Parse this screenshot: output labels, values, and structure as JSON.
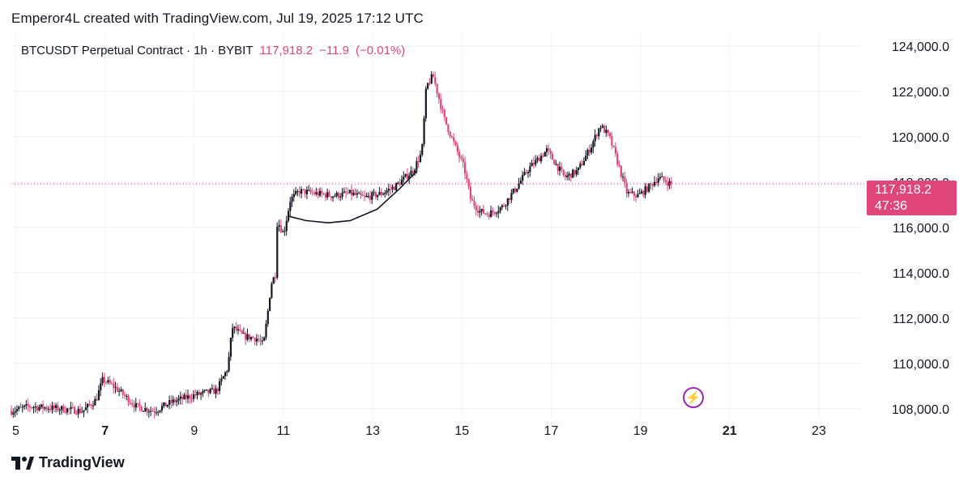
{
  "header": {
    "attribution": "Emperor4L created with TradingView.com, Jul 19, 2025 17:12 UTC"
  },
  "legend": {
    "symbol": "BTCUSDT Perpetual Contract · 1h · BYBIT",
    "last": "117,918.2",
    "change": "−11.9",
    "change_pct": "(−0.01%)"
  },
  "price_tag": {
    "price": "117,918.2",
    "countdown": "47:36"
  },
  "footer": {
    "brand": "TradingView"
  },
  "colors": {
    "up": "#131722",
    "down": "#e0457b",
    "grid": "#f0f3fa",
    "axis_text": "#131722",
    "price_line": "#e0457b"
  },
  "chart_data": {
    "type": "candlestick",
    "title": "BTCUSDT Perpetual Contract · 1h · BYBIT",
    "timeframe": "1h",
    "ylim": [
      107600,
      124600
    ],
    "y_ticks": [
      {
        "value": 108000,
        "label": "108,000.0"
      },
      {
        "value": 110000,
        "label": "110,000.0"
      },
      {
        "value": 112000,
        "label": "112,000.0"
      },
      {
        "value": 114000,
        "label": "114,000.0"
      },
      {
        "value": 116000,
        "label": "116,000.0"
      },
      {
        "value": 118000,
        "label": "118,000.0"
      },
      {
        "value": 120000,
        "label": "120,000.0"
      },
      {
        "value": 122000,
        "label": "122,000.0"
      },
      {
        "value": 124000,
        "label": "124,000.0"
      }
    ],
    "xlim_days": [
      4.9,
      24.0
    ],
    "x_ticks": [
      {
        "day": 5,
        "label": "5",
        "bold": false
      },
      {
        "day": 7,
        "label": "7",
        "bold": true
      },
      {
        "day": 9,
        "label": "9",
        "bold": false
      },
      {
        "day": 11,
        "label": "11",
        "bold": false
      },
      {
        "day": 13,
        "label": "13",
        "bold": false
      },
      {
        "day": 15,
        "label": "15",
        "bold": false
      },
      {
        "day": 17,
        "label": "17",
        "bold": false
      },
      {
        "day": 19,
        "label": "19",
        "bold": false
      },
      {
        "day": 21,
        "label": "21",
        "bold": true
      },
      {
        "day": 23,
        "label": "23",
        "bold": false
      }
    ],
    "last_price": 117918.2,
    "path_points": [
      [
        4.9,
        107900
      ],
      [
        5.3,
        108100
      ],
      [
        6.0,
        108000
      ],
      [
        6.5,
        107900
      ],
      [
        6.8,
        108400
      ],
      [
        6.95,
        109300
      ],
      [
        7.25,
        108900
      ],
      [
        7.7,
        108100
      ],
      [
        8.1,
        107900
      ],
      [
        8.5,
        108300
      ],
      [
        9.0,
        108600
      ],
      [
        9.5,
        108800
      ],
      [
        9.75,
        109800
      ],
      [
        9.85,
        111600
      ],
      [
        10.1,
        111200
      ],
      [
        10.4,
        111100
      ],
      [
        10.55,
        110800
      ],
      [
        10.65,
        112300
      ],
      [
        10.72,
        113500
      ],
      [
        10.83,
        114000
      ],
      [
        10.86,
        116300
      ],
      [
        11.0,
        115700
      ],
      [
        11.15,
        117200
      ],
      [
        11.35,
        117600
      ],
      [
        11.7,
        117500
      ],
      [
        12.1,
        117400
      ],
      [
        12.5,
        117500
      ],
      [
        12.8,
        117300
      ],
      [
        13.2,
        117500
      ],
      [
        13.5,
        117800
      ],
      [
        13.9,
        118500
      ],
      [
        14.1,
        119300
      ],
      [
        14.2,
        122200
      ],
      [
        14.35,
        122700
      ],
      [
        14.6,
        120800
      ],
      [
        14.8,
        119800
      ],
      [
        15.05,
        118600
      ],
      [
        15.2,
        117200
      ],
      [
        15.4,
        116700
      ],
      [
        15.6,
        116600
      ],
      [
        15.9,
        116900
      ],
      [
        16.2,
        117700
      ],
      [
        16.5,
        118600
      ],
      [
        16.9,
        119400
      ],
      [
        17.3,
        118200
      ],
      [
        17.6,
        118500
      ],
      [
        17.9,
        119600
      ],
      [
        18.1,
        120500
      ],
      [
        18.3,
        120000
      ],
      [
        18.5,
        118800
      ],
      [
        18.7,
        117500
      ],
      [
        18.95,
        117400
      ],
      [
        19.2,
        117800
      ],
      [
        19.4,
        118200
      ],
      [
        19.6,
        118000
      ],
      [
        19.7,
        117900
      ]
    ],
    "annotation": {
      "type": "cup-curve",
      "points": [
        [
          11.1,
          116500
        ],
        [
          11.5,
          116300
        ],
        [
          12.0,
          116200
        ],
        [
          12.5,
          116300
        ],
        [
          13.1,
          116800
        ],
        [
          13.6,
          117700
        ],
        [
          14.0,
          118500
        ]
      ]
    },
    "current_time_marker": {
      "day": 19.75,
      "icon": "lightning-bolt"
    }
  }
}
